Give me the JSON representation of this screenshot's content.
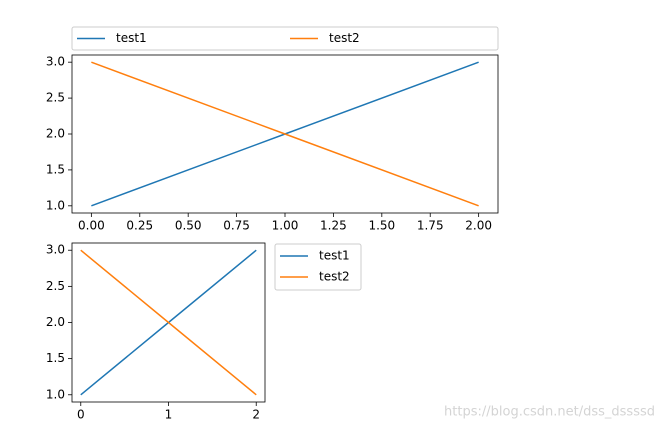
{
  "chart_data": [
    {
      "type": "line",
      "x": [
        0,
        1,
        2
      ],
      "series": [
        {
          "name": "test1",
          "color": "#1f77b4",
          "values": [
            1,
            2,
            3
          ]
        },
        {
          "name": "test2",
          "color": "#ff7f0e",
          "values": [
            3,
            2,
            1
          ]
        }
      ],
      "xlim": [
        -0.1,
        2.1
      ],
      "ylim": [
        0.9,
        3.1
      ],
      "xticks": [
        {
          "value": 0,
          "label": "0.00"
        },
        {
          "value": 0.25,
          "label": "0.25"
        },
        {
          "value": 0.5,
          "label": "0.50"
        },
        {
          "value": 0.75,
          "label": "0.75"
        },
        {
          "value": 1,
          "label": "1.00"
        },
        {
          "value": 1.25,
          "label": "1.25"
        },
        {
          "value": 1.5,
          "label": "1.50"
        },
        {
          "value": 1.75,
          "label": "1.75"
        },
        {
          "value": 2,
          "label": "2.00"
        }
      ],
      "yticks": [
        {
          "value": 1,
          "label": "1.0"
        },
        {
          "value": 1.5,
          "label": "1.5"
        },
        {
          "value": 2,
          "label": "2.0"
        },
        {
          "value": 2.5,
          "label": "2.5"
        },
        {
          "value": 3,
          "label": "3.0"
        }
      ],
      "legend": "above"
    },
    {
      "type": "line",
      "x": [
        0,
        1,
        2
      ],
      "series": [
        {
          "name": "test1",
          "color": "#1f77b4",
          "values": [
            1,
            2,
            3
          ]
        },
        {
          "name": "test2",
          "color": "#ff7f0e",
          "values": [
            3,
            2,
            1
          ]
        }
      ],
      "xlim": [
        -0.1,
        2.1
      ],
      "ylim": [
        0.9,
        3.1
      ],
      "xticks": [
        0,
        1,
        2
      ],
      "yticks": [
        {
          "value": 1,
          "label": "1.0"
        },
        {
          "value": 1.5,
          "label": "1.5"
        },
        {
          "value": 2,
          "label": "2.0"
        },
        {
          "value": 2.5,
          "label": "2.5"
        },
        {
          "value": 3,
          "label": "3.0"
        }
      ],
      "legend": "right"
    }
  ],
  "watermark": "https://blog.csdn.net/dss_dssssd"
}
